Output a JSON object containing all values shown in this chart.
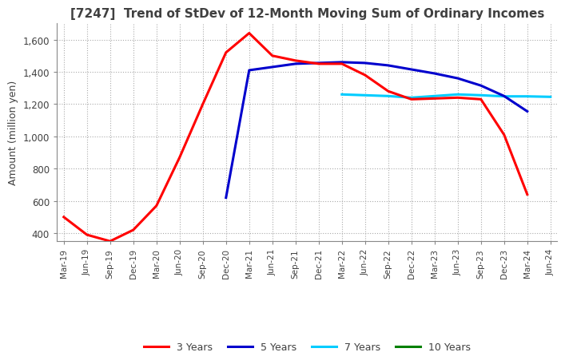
{
  "title": "[7247]  Trend of StDev of 12-Month Moving Sum of Ordinary Incomes",
  "ylabel": "Amount (million yen)",
  "legend": [
    "3 Years",
    "5 Years",
    "7 Years",
    "10 Years"
  ],
  "legend_colors": [
    "#ff0000",
    "#0000cd",
    "#00ccff",
    "#008000"
  ],
  "x_labels": [
    "Mar-19",
    "Jun-19",
    "Sep-19",
    "Dec-19",
    "Mar-20",
    "Jun-20",
    "Sep-20",
    "Dec-20",
    "Mar-21",
    "Jun-21",
    "Sep-21",
    "Dec-21",
    "Mar-22",
    "Jun-22",
    "Sep-22",
    "Dec-22",
    "Mar-23",
    "Jun-23",
    "Sep-23",
    "Dec-23",
    "Mar-24",
    "Jun-24"
  ],
  "ylim": [
    350,
    1700
  ],
  "yticks": [
    400,
    600,
    800,
    1000,
    1200,
    1400,
    1600
  ],
  "series_3y": [
    500,
    390,
    350,
    420,
    570,
    870,
    1200,
    1520,
    1640,
    1500,
    1470,
    1450,
    1450,
    1380,
    1280,
    1230,
    1235,
    1240,
    1230,
    1010,
    640,
    null
  ],
  "series_5y": [
    null,
    null,
    null,
    null,
    null,
    null,
    null,
    620,
    1410,
    1430,
    1450,
    1455,
    1460,
    1455,
    1440,
    1415,
    1390,
    1360,
    1315,
    1250,
    1155,
    null
  ],
  "series_7y": [
    null,
    null,
    null,
    null,
    null,
    null,
    null,
    null,
    null,
    null,
    null,
    null,
    1260,
    1255,
    1250,
    1240,
    1250,
    1260,
    1255,
    1248,
    1248,
    1245
  ],
  "series_10y": [],
  "background_color": "#ffffff",
  "grid_color": "#aaaaaa",
  "title_color": "#404040"
}
